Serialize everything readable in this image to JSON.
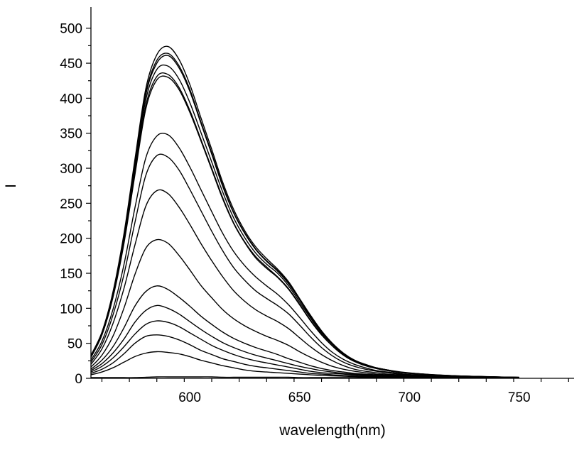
{
  "chart_data": {
    "type": "line",
    "xlabel": "wavelength(nm)",
    "ylabel": "I",
    "xlim": [
      555,
      775
    ],
    "ylim": [
      0,
      520
    ],
    "x_ticks": [
      600,
      650,
      700,
      750
    ],
    "y_ticks": [
      0,
      50,
      100,
      150,
      200,
      250,
      300,
      350,
      400,
      450,
      500
    ],
    "x_tick_labels": [
      "600",
      "650",
      "700",
      "750"
    ],
    "y_tick_labels": [
      "0",
      "50",
      "100",
      "150",
      "200",
      "250",
      "300",
      "350",
      "400",
      "450",
      "500"
    ],
    "x": [
      555,
      560,
      565,
      570,
      575,
      580,
      585,
      590,
      595,
      600,
      605,
      610,
      615,
      620,
      625,
      630,
      635,
      640,
      645,
      650,
      655,
      660,
      665,
      670,
      675,
      680,
      685,
      690,
      695,
      700,
      710,
      720,
      730,
      740,
      750
    ],
    "line_color": "#000000",
    "series": [
      {
        "values": [
          1,
          1,
          1,
          1,
          1,
          1.5,
          2,
          2,
          2,
          2,
          2,
          2,
          1.5,
          1.5,
          1.5,
          1.5,
          1.5,
          1.5,
          1.5,
          1,
          1,
          1,
          1,
          1,
          1,
          1,
          1,
          1,
          1,
          1,
          0.5,
          0.5,
          0.5,
          0.5,
          0.5
        ]
      },
      {
        "values": [
          5,
          9,
          15,
          23,
          31,
          36,
          38,
          37,
          35,
          31,
          26,
          22,
          18,
          15,
          12,
          10,
          9,
          8,
          7,
          6,
          5,
          4,
          3.5,
          3,
          2.5,
          2,
          1.8,
          1.5,
          1.3,
          1.2,
          1,
          0.8,
          0.6,
          0.5,
          0.4
        ]
      },
      {
        "values": [
          7,
          13,
          22,
          35,
          50,
          60,
          62,
          60,
          55,
          48,
          40,
          34,
          28,
          24,
          20,
          17,
          15,
          13,
          11,
          9,
          7,
          6,
          5,
          4,
          3.5,
          3,
          2.5,
          2,
          1.8,
          1.6,
          1.3,
          1,
          0.8,
          0.6,
          0.5
        ]
      },
      {
        "values": [
          9,
          17,
          29,
          45,
          63,
          77,
          82,
          80,
          74,
          65,
          56,
          47,
          40,
          34,
          29,
          25,
          22,
          19,
          16,
          13,
          10,
          8,
          7,
          6,
          5,
          4,
          3.5,
          3,
          2.5,
          2.2,
          1.8,
          1.4,
          1.1,
          0.8,
          0.6
        ]
      },
      {
        "values": [
          11,
          21,
          36,
          56,
          80,
          97,
          104,
          100,
          92,
          81,
          70,
          60,
          51,
          44,
          38,
          33,
          29,
          25,
          21,
          17,
          14,
          11,
          9,
          7,
          6,
          5,
          4,
          3.5,
          3,
          2.5,
          2,
          1.6,
          1.2,
          0.9,
          0.7
        ]
      },
      {
        "values": [
          13,
          26,
          45,
          72,
          103,
          124,
          132,
          127,
          116,
          103,
          89,
          77,
          66,
          57,
          50,
          44,
          39,
          34,
          28,
          23,
          18,
          14,
          11,
          9,
          7,
          6,
          5,
          4,
          3.5,
          3,
          2.3,
          1.8,
          1.4,
          1,
          0.8
        ]
      },
      {
        "values": [
          16,
          33,
          60,
          100,
          148,
          186,
          198,
          193,
          176,
          155,
          133,
          115,
          98,
          85,
          75,
          67,
          60,
          54,
          47,
          38,
          30,
          23,
          17,
          13,
          10,
          8,
          6,
          5,
          4,
          3.5,
          2.6,
          2,
          1.5,
          1.1,
          0.8
        ]
      },
      {
        "values": [
          20,
          42,
          78,
          128,
          190,
          246,
          268,
          264,
          245,
          220,
          193,
          168,
          145,
          125,
          110,
          98,
          89,
          81,
          71,
          58,
          45,
          34,
          25,
          18,
          13,
          10,
          8,
          6,
          5,
          4,
          3,
          2.3,
          1.7,
          1.2,
          0.9
        ]
      },
      {
        "values": [
          23,
          48,
          90,
          148,
          222,
          290,
          318,
          316,
          298,
          270,
          240,
          210,
          182,
          158,
          140,
          125,
          114,
          104,
          92,
          76,
          59,
          44,
          32,
          23,
          17,
          13,
          10,
          8,
          6,
          5,
          3.5,
          2.6,
          1.9,
          1.3,
          1
        ]
      },
      {
        "values": [
          26,
          53,
          98,
          162,
          243,
          315,
          346,
          348,
          330,
          302,
          270,
          238,
          207,
          181,
          161,
          145,
          132,
          120,
          105,
          87,
          68,
          51,
          37,
          27,
          20,
          15,
          11,
          9,
          7,
          5.5,
          4,
          3,
          2.1,
          1.5,
          1.1
        ]
      },
      {
        "values": [
          30,
          62,
          115,
          192,
          290,
          385,
          426,
          430,
          413,
          380,
          340,
          298,
          256,
          221,
          194,
          172,
          157,
          144,
          127,
          105,
          82,
          62,
          46,
          33,
          24,
          18,
          14,
          11,
          8.5,
          7,
          5,
          3.5,
          2.5,
          1.8,
          1.3
        ]
      },
      {
        "values": [
          30,
          62,
          116,
          195,
          295,
          390,
          431,
          434,
          416,
          383,
          342,
          300,
          258,
          222,
          195,
          174,
          159,
          145,
          128,
          106,
          83,
          63,
          46,
          33,
          24,
          18,
          14,
          11,
          8.5,
          7,
          5,
          3.5,
          2.5,
          1.8,
          1.3
        ]
      },
      {
        "values": [
          31,
          63,
          118,
          198,
          300,
          398,
          441,
          446,
          428,
          394,
          352,
          309,
          266,
          229,
          201,
          179,
          163,
          150,
          132,
          109,
          86,
          65,
          48,
          34,
          25,
          19,
          14,
          11,
          9,
          7,
          5,
          3.6,
          2.6,
          1.9,
          1.3
        ]
      },
      {
        "values": [
          32,
          64,
          120,
          201,
          305,
          405,
          450,
          461,
          444,
          410,
          365,
          320,
          274,
          236,
          207,
          184,
          167,
          153,
          135,
          112,
          88,
          67,
          49,
          35,
          26,
          19,
          15,
          12,
          9,
          7.5,
          5.2,
          3.7,
          2.7,
          1.9,
          1.4
        ]
      },
      {
        "values": [
          32,
          65,
          121,
          203,
          307,
          408,
          454,
          464,
          447,
          413,
          367,
          322,
          276,
          237,
          208,
          185,
          168,
          154,
          136,
          113,
          89,
          67,
          49,
          35,
          26,
          19,
          15,
          12,
          9,
          7.5,
          5.2,
          3.7,
          2.7,
          1.9,
          1.4
        ]
      },
      {
        "values": [
          33,
          66,
          123,
          206,
          312,
          414,
          462,
          474,
          456,
          420,
          373,
          327,
          280,
          241,
          211,
          188,
          171,
          156,
          138,
          114,
          90,
          68,
          50,
          36,
          26,
          20,
          15,
          12,
          9.5,
          7.8,
          5.4,
          3.8,
          2.8,
          2,
          1.4
        ]
      }
    ]
  }
}
